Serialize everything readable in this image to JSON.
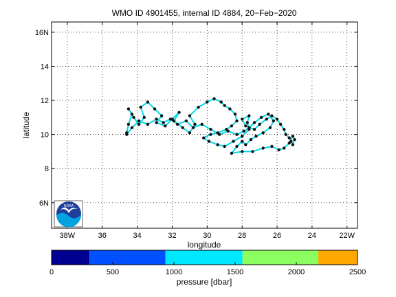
{
  "chart_data": {
    "type": "scatter",
    "title": "WMO ID 4901455, internal ID 4884, 20−Feb−2020",
    "xlabel": "longitude",
    "ylabel": "latitude",
    "xlim": [
      -38.9,
      -21.4
    ],
    "ylim": [
      4.5,
      16.6
    ],
    "grid": true,
    "x_ticks": [
      {
        "value": -38,
        "label": "38W"
      },
      {
        "value": -36,
        "label": "36"
      },
      {
        "value": -34,
        "label": "34"
      },
      {
        "value": -32,
        "label": "32"
      },
      {
        "value": -30,
        "label": "30"
      },
      {
        "value": -28,
        "label": "28"
      },
      {
        "value": -26,
        "label": "26"
      },
      {
        "value": -24,
        "label": "24"
      },
      {
        "value": -22,
        "label": "22W"
      }
    ],
    "y_ticks": [
      {
        "value": 6,
        "label": "6N"
      },
      {
        "value": 8,
        "label": "8"
      },
      {
        "value": 10,
        "label": "10"
      },
      {
        "value": 12,
        "label": "12"
      },
      {
        "value": 14,
        "label": "14"
      },
      {
        "value": 16,
        "label": "16N"
      }
    ],
    "track": {
      "line_color": "#00d8e8",
      "point_color": "#111111",
      "lon": [
        -34.6,
        -34.5,
        -34.3,
        -34.5,
        -34.2,
        -33.9,
        -33.6,
        -33.8,
        -33.4,
        -33.0,
        -32.6,
        -32.9,
        -32.4,
        -32.0,
        -31.6,
        -31.9,
        -31.4,
        -31.0,
        -30.7,
        -31.0,
        -30.5,
        -30.0,
        -29.6,
        -29.2,
        -29.0,
        -28.7,
        -28.4,
        -28.3,
        -28.6,
        -28.9,
        -29.4,
        -29.8,
        -30.2,
        -29.9,
        -29.4,
        -29.0,
        -28.5,
        -28.0,
        -27.6,
        -27.7,
        -27.6,
        -28.0,
        -27.8,
        -27.3,
        -27.0,
        -26.6,
        -26.3,
        -26.0,
        -25.8,
        -25.6,
        -25.5,
        -25.3,
        -25.2,
        -25.1,
        -25.0,
        -25.1,
        -25.3,
        -25.6,
        -25.9,
        -26.3,
        -26.8,
        -27.4,
        -28.0,
        -28.6,
        -28.3,
        -28.0,
        -27.8,
        -27.5,
        -27.2,
        -26.8,
        -26.4,
        -26.2,
        -26.5,
        -26.9,
        -27.3,
        -27.6,
        -27.9,
        -28.3,
        -28.8,
        -29.3,
        -29.8,
        -30.3,
        -30.8,
        -31.2,
        -31.7,
        -32.1,
        -32.5,
        -32.9,
        -33.4,
        -33.9,
        -34.3,
        -34.6
      ],
      "lat": [
        10.1,
        10.6,
        11.2,
        11.5,
        11.0,
        10.6,
        11.0,
        11.6,
        11.9,
        11.5,
        11.1,
        10.7,
        10.5,
        10.9,
        11.3,
        10.8,
        10.4,
        10.1,
        10.6,
        11.1,
        11.6,
        11.9,
        12.1,
        11.9,
        11.7,
        11.5,
        11.2,
        10.8,
        10.5,
        10.3,
        10.1,
        10.0,
        9.8,
        9.6,
        9.4,
        9.3,
        9.6,
        9.9,
        10.3,
        10.7,
        11.1,
        10.9,
        10.5,
        10.3,
        10.6,
        10.9,
        11.1,
        10.9,
        10.6,
        10.3,
        10.0,
        9.8,
        9.6,
        9.4,
        9.7,
        9.9,
        9.5,
        9.2,
        9.1,
        9.3,
        9.2,
        9.0,
        9.0,
        8.9,
        9.3,
        9.6,
        9.4,
        9.7,
        9.9,
        10.1,
        10.4,
        10.8,
        11.2,
        11.0,
        10.7,
        10.4,
        10.2,
        10.0,
        10.2,
        10.0,
        10.3,
        10.6,
        10.4,
        10.8,
        10.6,
        10.9,
        10.7,
        10.9,
        10.6,
        10.8,
        10.4,
        10.0
      ]
    }
  },
  "colorbar": {
    "label": "pressure [dbar]",
    "min": 0,
    "max": 2500,
    "tick_labels": [
      "0",
      "500",
      "1000",
      "1500",
      "2000",
      "2500"
    ],
    "segments": [
      {
        "from": 0,
        "to": 310,
        "color": "#000090"
      },
      {
        "from": 310,
        "to": 930,
        "color": "#0050ff"
      },
      {
        "from": 930,
        "to": 1560,
        "color": "#00e8ff"
      },
      {
        "from": 1560,
        "to": 2180,
        "color": "#8cff60"
      },
      {
        "from": 2180,
        "to": 2500,
        "color": "#ffa800"
      }
    ]
  },
  "logo": {
    "text": "NOAA",
    "icon": "noaa-logo-icon",
    "colors": {
      "sky": "#1f3f9c",
      "sea": "#00a3e0",
      "bird": "#ffffff"
    }
  }
}
